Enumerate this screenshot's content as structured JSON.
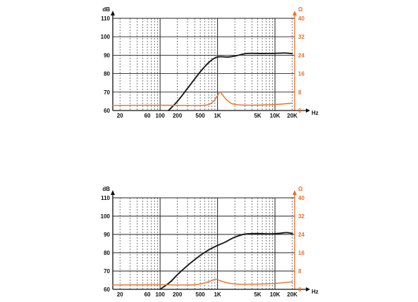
{
  "colors": {
    "spl": "#1a1a1a",
    "impedance": "#e8702a",
    "grid": "#222222"
  },
  "chart_data": [
    {
      "type": "line",
      "title": "",
      "xlabel": "Hz",
      "ylabel": "dB",
      "y2label": "Ω",
      "xscale": "log",
      "xlim": [
        15,
        22000
      ],
      "ylim": [
        60,
        110
      ],
      "y2lim": [
        0,
        40
      ],
      "grid": true,
      "x_ticks": [
        {
          "value": 20,
          "label": "20"
        },
        {
          "value": 60,
          "label": "60"
        },
        {
          "value": 100,
          "label": "100"
        },
        {
          "value": 200,
          "label": "200"
        },
        {
          "value": 500,
          "label": "500"
        },
        {
          "value": 1000,
          "label": "1K"
        },
        {
          "value": 5000,
          "label": "5K"
        },
        {
          "value": 10000,
          "label": "10K"
        },
        {
          "value": 20000,
          "label": "20K"
        }
      ],
      "y_ticks": [
        "60",
        "70",
        "80",
        "90",
        "100",
        "110"
      ],
      "y2_ticks": [
        "0",
        "8",
        "16",
        "24",
        "32",
        "40"
      ],
      "series": [
        {
          "axis": "left",
          "color": "#1a1a1a",
          "points": [
            [
              140,
              60
            ],
            [
              200,
              65
            ],
            [
              300,
              72
            ],
            [
              500,
              81
            ],
            [
              700,
              86
            ],
            [
              900,
              88.5
            ],
            [
              1100,
              89.2
            ],
            [
              1500,
              89
            ],
            [
              2000,
              89.5
            ],
            [
              3000,
              90.8
            ],
            [
              4000,
              91
            ],
            [
              6000,
              90.9
            ],
            [
              10000,
              91
            ],
            [
              15000,
              91.2
            ],
            [
              20000,
              90.8
            ]
          ]
        },
        {
          "axis": "right",
          "color": "#e8702a",
          "points": [
            [
              15,
              2.2
            ],
            [
              100,
              2.3
            ],
            [
              300,
              2.2
            ],
            [
              500,
              2.2
            ],
            [
              700,
              2.6
            ],
            [
              850,
              4
            ],
            [
              1000,
              6.5
            ],
            [
              1100,
              8
            ],
            [
              1200,
              7
            ],
            [
              1400,
              5
            ],
            [
              1700,
              3.2
            ],
            [
              2200,
              2.5
            ],
            [
              4000,
              2.3
            ],
            [
              10000,
              2.6
            ],
            [
              20000,
              3.2
            ]
          ]
        }
      ]
    },
    {
      "type": "line",
      "title": "",
      "xlabel": "Hz",
      "ylabel": "dB",
      "y2label": "Ω",
      "xscale": "log",
      "xlim": [
        15,
        22000
      ],
      "ylim": [
        60,
        110
      ],
      "y2lim": [
        0,
        40
      ],
      "grid": true,
      "x_ticks": [
        {
          "value": 20,
          "label": "20"
        },
        {
          "value": 60,
          "label": "60"
        },
        {
          "value": 100,
          "label": "100"
        },
        {
          "value": 200,
          "label": "200"
        },
        {
          "value": 500,
          "label": "500"
        },
        {
          "value": 1000,
          "label": "1K"
        },
        {
          "value": 5000,
          "label": "5K"
        },
        {
          "value": 10000,
          "label": "10K"
        },
        {
          "value": 20000,
          "label": "20K"
        }
      ],
      "y_ticks": [
        "60",
        "70",
        "80",
        "90",
        "100",
        "110"
      ],
      "y2_ticks": [
        "0",
        "8",
        "16",
        "24",
        "32",
        "40"
      ],
      "series": [
        {
          "axis": "left",
          "color": "#1a1a1a",
          "points": [
            [
              100,
              60
            ],
            [
              150,
              64
            ],
            [
              200,
              68
            ],
            [
              300,
              73
            ],
            [
              500,
              78.5
            ],
            [
              700,
              81.5
            ],
            [
              1000,
              84
            ],
            [
              1300,
              85.5
            ],
            [
              2000,
              88.5
            ],
            [
              3000,
              90.2
            ],
            [
              5000,
              90.5
            ],
            [
              8000,
              90.3
            ],
            [
              12000,
              90.6
            ],
            [
              16000,
              91
            ],
            [
              20000,
              90.5
            ]
          ]
        },
        {
          "axis": "right",
          "color": "#e8702a",
          "points": [
            [
              15,
              1.9
            ],
            [
              100,
              2
            ],
            [
              200,
              1.9
            ],
            [
              400,
              2
            ],
            [
              550,
              2.6
            ],
            [
              700,
              3.3
            ],
            [
              850,
              4.2
            ],
            [
              950,
              4.4
            ],
            [
              1050,
              4
            ],
            [
              1300,
              3.2
            ],
            [
              1800,
              2.5
            ],
            [
              3000,
              2.2
            ],
            [
              8000,
              2.4
            ],
            [
              14000,
              2.9
            ],
            [
              20000,
              3.3
            ]
          ]
        }
      ]
    }
  ]
}
